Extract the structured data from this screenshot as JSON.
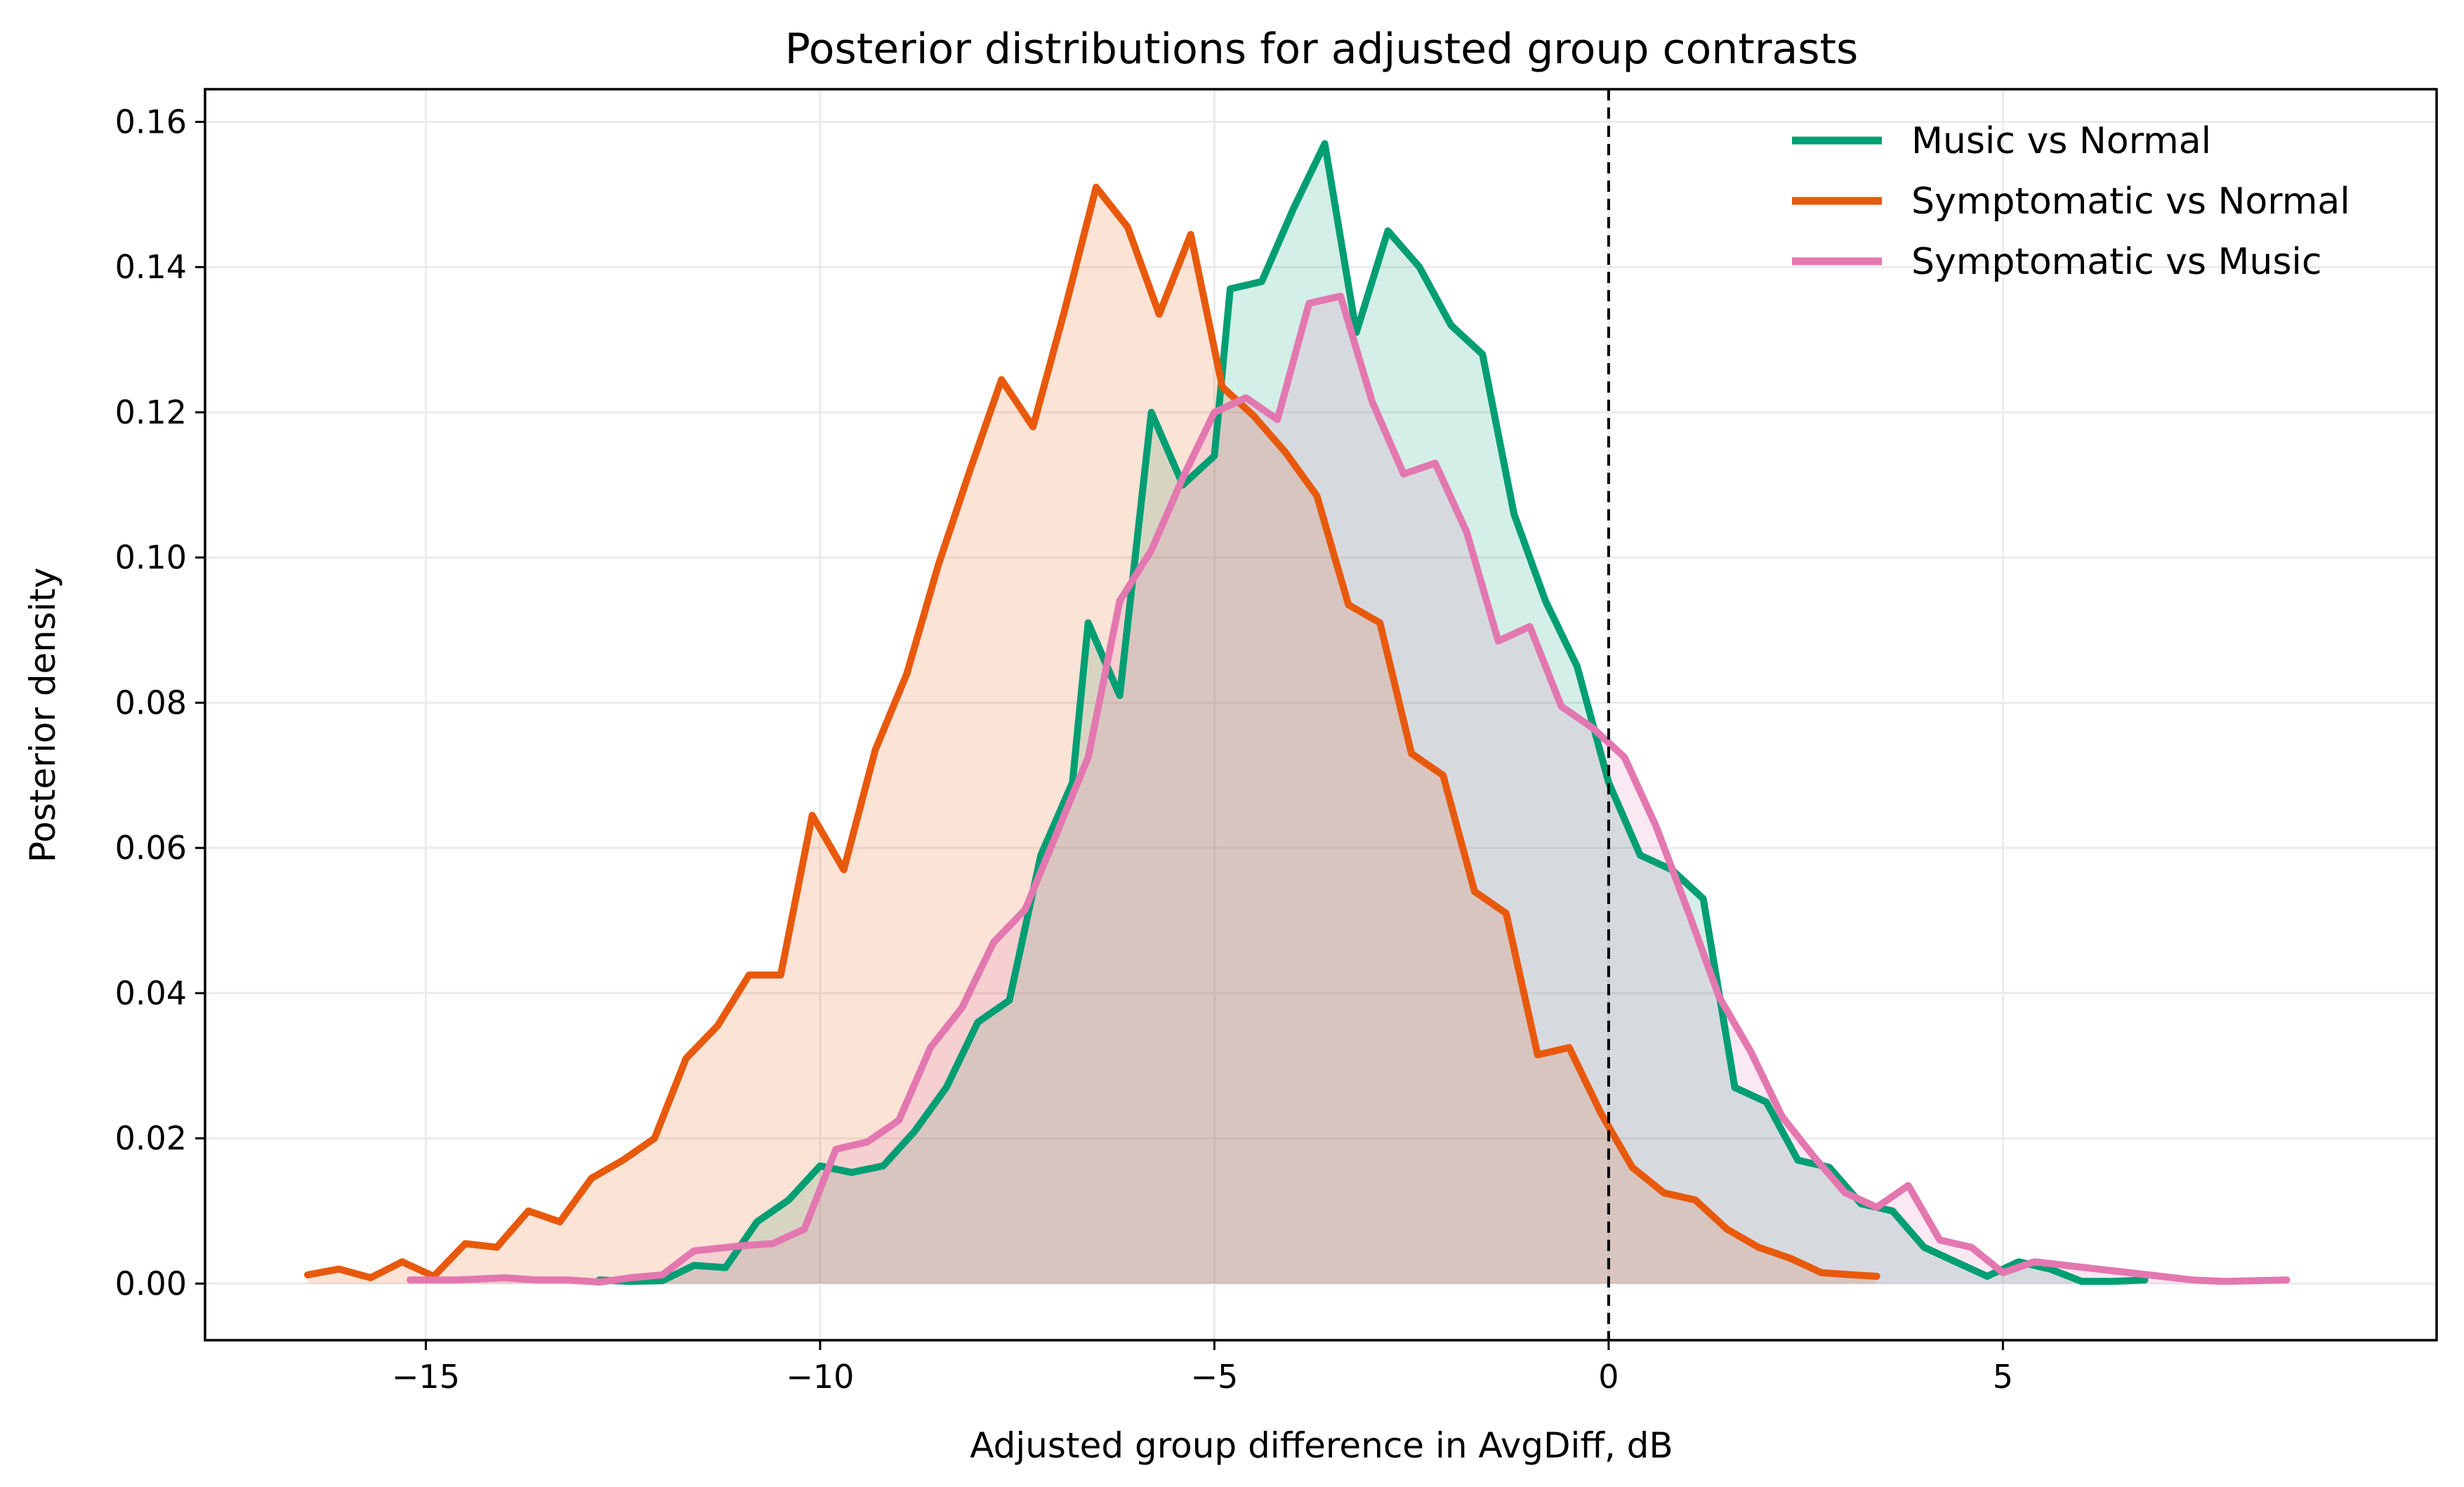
{
  "chart_data": {
    "type": "area",
    "title": "Posterior distributions for adjusted group contrasts",
    "xlabel": "Adjusted group difference in AvgDiff, dB",
    "ylabel": "Posterior density",
    "xlim": [
      -17.8,
      10.5
    ],
    "ylim": [
      -0.0078,
      0.1645
    ],
    "xticks": [
      -15,
      -10,
      -5,
      0,
      5
    ],
    "xtick_labels": [
      "−15",
      "−10",
      "−5",
      "0",
      "5"
    ],
    "yticks": [
      0.0,
      0.02,
      0.04,
      0.06,
      0.08,
      0.1,
      0.12,
      0.14,
      0.16
    ],
    "ytick_labels": [
      "0.00",
      "0.02",
      "0.04",
      "0.06",
      "0.08",
      "0.10",
      "0.12",
      "0.14",
      "0.16"
    ],
    "grid": true,
    "legend_position": "top-right",
    "reference_line": {
      "x": 0,
      "style": "dashed",
      "color": "#000000"
    },
    "series": [
      {
        "name": "Music vs Normal",
        "color": "#009E73",
        "x": [
          -12.8,
          -12.4,
          -12.0,
          -11.6,
          -11.2,
          -10.8,
          -10.4,
          -10.0,
          -9.6,
          -9.2,
          -8.8,
          -8.4,
          -8.0,
          -7.6,
          -7.2,
          -6.8,
          -6.6,
          -6.2,
          -5.8,
          -5.4,
          -5.0,
          -4.8,
          -4.4,
          -4.0,
          -3.6,
          -3.2,
          -2.8,
          -2.4,
          -2.0,
          -1.6,
          -1.2,
          -0.8,
          -0.4,
          0.0,
          0.4,
          0.8,
          1.2,
          1.6,
          2.0,
          2.4,
          2.8,
          3.2,
          3.6,
          4.0,
          4.4,
          4.8,
          5.2,
          5.6,
          6.0,
          6.4,
          6.8
        ],
        "y": [
          0.0005,
          0.0003,
          0.0004,
          0.0025,
          0.0022,
          0.0085,
          0.0115,
          0.0162,
          0.0153,
          0.0162,
          0.021,
          0.027,
          0.036,
          0.039,
          0.059,
          0.069,
          0.091,
          0.081,
          0.12,
          0.11,
          0.114,
          0.137,
          0.138,
          0.148,
          0.157,
          0.131,
          0.145,
          0.14,
          0.132,
          0.128,
          0.106,
          0.094,
          0.085,
          0.069,
          0.059,
          0.057,
          0.053,
          0.027,
          0.025,
          0.017,
          0.016,
          0.011,
          0.01,
          0.005,
          0.003,
          0.001,
          0.003,
          0.002,
          0.0003,
          0.0003,
          0.0005
        ]
      },
      {
        "name": "Symptomatic vs Normal",
        "color": "#E8590C",
        "x": [
          -16.5,
          -16.1,
          -15.7,
          -15.3,
          -14.9,
          -14.5,
          -14.1,
          -13.7,
          -13.3,
          -12.9,
          -12.5,
          -12.1,
          -11.7,
          -11.3,
          -10.9,
          -10.5,
          -10.1,
          -9.7,
          -9.3,
          -8.9,
          -8.5,
          -8.1,
          -7.7,
          -7.3,
          -6.9,
          -6.5,
          -6.1,
          -5.7,
          -5.3,
          -4.9,
          -4.5,
          -4.1,
          -3.7,
          -3.3,
          -2.9,
          -2.5,
          -2.1,
          -1.7,
          -1.3,
          -0.9,
          -0.5,
          -0.1,
          0.3,
          0.7,
          1.1,
          1.5,
          1.9,
          2.3,
          2.7,
          3.1,
          3.4
        ],
        "y": [
          0.0012,
          0.002,
          0.0008,
          0.003,
          0.001,
          0.0055,
          0.005,
          0.01,
          0.0085,
          0.0145,
          0.017,
          0.02,
          0.031,
          0.0355,
          0.0425,
          0.0425,
          0.0645,
          0.057,
          0.0735,
          0.084,
          0.099,
          0.112,
          0.1245,
          0.118,
          0.134,
          0.151,
          0.1455,
          0.1335,
          0.1445,
          0.1235,
          0.1195,
          0.1145,
          0.1085,
          0.0935,
          0.091,
          0.073,
          0.07,
          0.054,
          0.051,
          0.0315,
          0.0325,
          0.0235,
          0.016,
          0.0125,
          0.0115,
          0.0075,
          0.005,
          0.0035,
          0.0015,
          0.0012,
          0.001
        ]
      },
      {
        "name": "Symptomatic vs Music",
        "color": "#E377B0",
        "x": [
          -15.2,
          -14.6,
          -14.0,
          -13.6,
          -13.2,
          -12.8,
          -12.4,
          -12.0,
          -11.6,
          -11.0,
          -10.6,
          -10.2,
          -9.8,
          -9.4,
          -9.0,
          -8.6,
          -8.2,
          -7.8,
          -7.4,
          -7.0,
          -6.6,
          -6.2,
          -5.8,
          -5.4,
          -5.0,
          -4.6,
          -4.2,
          -3.8,
          -3.4,
          -3.0,
          -2.6,
          -2.2,
          -1.8,
          -1.4,
          -1.0,
          -0.6,
          -0.2,
          0.2,
          0.6,
          1.0,
          1.4,
          1.8,
          2.2,
          2.6,
          3.0,
          3.4,
          3.8,
          4.2,
          4.6,
          5.0,
          5.4,
          5.8,
          6.2,
          6.6,
          7.0,
          7.4,
          7.8,
          8.2,
          8.6
        ],
        "y": [
          0.0005,
          0.0005,
          0.0008,
          0.0005,
          0.0005,
          0.0002,
          0.0008,
          0.0012,
          0.0045,
          0.0052,
          0.0055,
          0.0075,
          0.0185,
          0.0195,
          0.0225,
          0.0325,
          0.038,
          0.047,
          0.0515,
          0.062,
          0.0725,
          0.094,
          0.101,
          0.111,
          0.12,
          0.122,
          0.119,
          0.135,
          0.136,
          0.1215,
          0.1115,
          0.113,
          0.1035,
          0.0885,
          0.0905,
          0.0795,
          0.0765,
          0.0725,
          0.063,
          0.0515,
          0.0395,
          0.032,
          0.023,
          0.0175,
          0.0125,
          0.0105,
          0.0135,
          0.006,
          0.005,
          0.0015,
          0.003,
          0.0025,
          0.002,
          0.0015,
          0.001,
          0.0005,
          0.0003,
          0.0004,
          0.0005
        ]
      }
    ]
  }
}
